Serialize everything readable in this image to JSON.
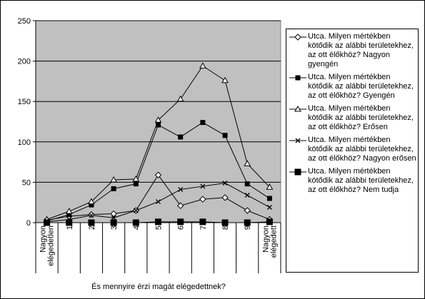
{
  "chart_data": {
    "type": "line",
    "x_label": "És mennyire érzi magát elégedettnek?",
    "categories": [
      "Nagyon elégedetlen",
      "1",
      "2",
      "3",
      "4",
      "5",
      "6",
      "7",
      "8",
      "9",
      "Nagyon elégedett"
    ],
    "ylim": [
      0,
      250
    ],
    "yticks": [
      0,
      50,
      100,
      150,
      200,
      250
    ],
    "grid": true,
    "legend": "right",
    "series": [
      {
        "name": "Utca. Milyen mértékben kötődik az alábbi területekhez, az ott élőkhöz? Nagyon gyengén",
        "color": "#000000",
        "marker": "diamond",
        "values": [
          3,
          8,
          10,
          11,
          15,
          59,
          21,
          29,
          31,
          15,
          4
        ]
      },
      {
        "name": "Utca. Milyen mértékben kötődik az alábbi területekhez, az ott élőkhöz? Gyengén",
        "color": "#000000",
        "marker": "square",
        "values": [
          2,
          10,
          22,
          42,
          48,
          121,
          106,
          124,
          108,
          48,
          30
        ]
      },
      {
        "name": "Utca. Milyen mértékben kötődik az alábbi területekhez, az ott élőkhöz? Erősen",
        "color": "#000000",
        "marker": "triangle",
        "values": [
          4,
          14,
          26,
          53,
          54,
          127,
          153,
          194,
          176,
          73,
          44
        ]
      },
      {
        "name": "Utca. Milyen mértékben kötődik az alábbi területekhez, az ott élőkhöz? Nagyon erősen",
        "color": "#000000",
        "marker": "cross",
        "values": [
          1,
          4,
          9,
          6,
          15,
          26,
          41,
          45,
          49,
          34,
          19
        ]
      },
      {
        "name": "Utca. Milyen mértékben kötődik az alábbi területekhez, az ott élőkhöz? Nem tudja",
        "color": "#000000",
        "marker": "bigsquare",
        "values": [
          0,
          0,
          0,
          0,
          0,
          1,
          1,
          1,
          0,
          0,
          1
        ]
      }
    ]
  }
}
